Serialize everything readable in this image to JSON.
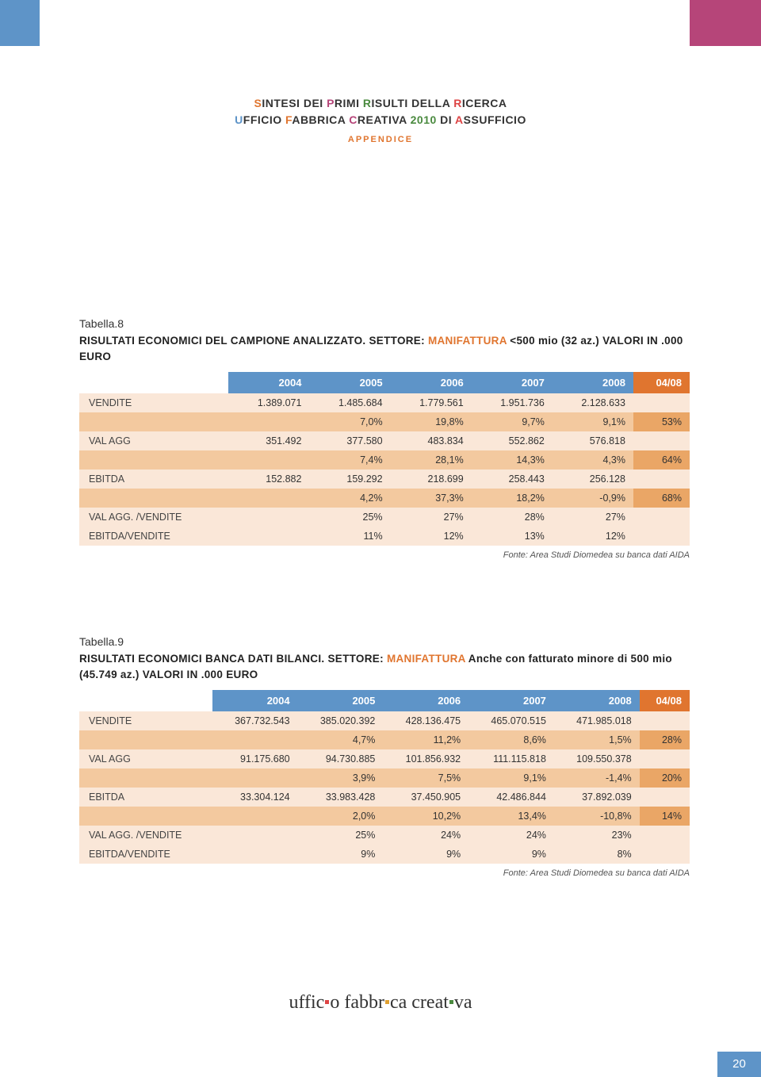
{
  "header": {
    "line1_parts": [
      {
        "t": "S",
        "c": "#e0752f"
      },
      {
        "t": "INTESI DEI ",
        "c": "#333"
      },
      {
        "t": "P",
        "c": "#b64579"
      },
      {
        "t": "RIMI ",
        "c": "#333"
      },
      {
        "t": "R",
        "c": "#4a8a3f"
      },
      {
        "t": "ISULTI DELLA ",
        "c": "#333"
      },
      {
        "t": "R",
        "c": "#d44"
      },
      {
        "t": "ICERCA",
        "c": "#333"
      }
    ],
    "line2_parts": [
      {
        "t": "U",
        "c": "#5e94c8"
      },
      {
        "t": "FFICIO ",
        "c": "#333"
      },
      {
        "t": "F",
        "c": "#e0752f"
      },
      {
        "t": "ABBRICA ",
        "c": "#333"
      },
      {
        "t": "C",
        "c": "#b64579"
      },
      {
        "t": "REATIVA ",
        "c": "#333"
      },
      {
        "t": "2010",
        "c": "#4a8a3f"
      },
      {
        "t": " DI ",
        "c": "#333"
      },
      {
        "t": "A",
        "c": "#d44"
      },
      {
        "t": "SSUFFICIO",
        "c": "#333"
      }
    ],
    "sub": "APPENDICE"
  },
  "section1": {
    "label": "Tabella.8",
    "title_pre": "RISULTATI ECONOMICI DEL CAMPIONE ANALIZZATO. SETTORE: ",
    "title_hl": "MANIFATTURA",
    "title_post": " <500 mio (32 az.) VALORI IN .000 EURO",
    "columns": [
      "",
      "2004",
      "2005",
      "2006",
      "2007",
      "2008",
      "04/08"
    ],
    "rows": [
      {
        "style": "light",
        "cells": [
          "VENDITE",
          "1.389.071",
          "1.485.684",
          "1.779.561",
          "1.951.736",
          "2.128.633",
          ""
        ]
      },
      {
        "style": "mid",
        "cells": [
          "",
          "",
          "7,0%",
          "19,8%",
          "9,7%",
          "9,1%",
          "53%"
        ]
      },
      {
        "style": "light",
        "cells": [
          "VAL AGG",
          "351.492",
          "377.580",
          "483.834",
          "552.862",
          "576.818",
          ""
        ]
      },
      {
        "style": "mid",
        "cells": [
          "",
          "",
          "7,4%",
          "28,1%",
          "14,3%",
          "4,3%",
          "64%"
        ]
      },
      {
        "style": "light",
        "cells": [
          "EBITDA",
          "152.882",
          "159.292",
          "218.699",
          "258.443",
          "256.128",
          ""
        ]
      },
      {
        "style": "mid",
        "cells": [
          "",
          "",
          "4,2%",
          "37,3%",
          "18,2%",
          "-0,9%",
          "68%"
        ]
      },
      {
        "style": "light",
        "cells": [
          "VAL AGG. /VENDITE",
          "",
          "25%",
          "27%",
          "28%",
          "27%",
          ""
        ]
      },
      {
        "style": "light",
        "cells": [
          "EBITDA/VENDITE",
          "",
          "11%",
          "12%",
          "13%",
          "12%",
          ""
        ]
      }
    ],
    "source": "Fonte: Area Studi Diomedea su banca dati AIDA"
  },
  "section2": {
    "label": "Tabella.9",
    "title_pre": "RISULTATI ECONOMICI BANCA DATI BILANCI. SETTORE: ",
    "title_hl": "MANIFATTURA",
    "title_post": " Anche con fatturato minore di 500 mio (45.749 az.) VALORI IN .000 EURO",
    "columns": [
      "",
      "2004",
      "2005",
      "2006",
      "2007",
      "2008",
      "04/08"
    ],
    "rows": [
      {
        "style": "light",
        "cells": [
          "VENDITE",
          "367.732.543",
          "385.020.392",
          "428.136.475",
          "465.070.515",
          "471.985.018",
          ""
        ]
      },
      {
        "style": "mid",
        "cells": [
          "",
          "",
          "4,7%",
          "11,2%",
          "8,6%",
          "1,5%",
          "28%"
        ]
      },
      {
        "style": "light",
        "cells": [
          "VAL AGG",
          "91.175.680",
          "94.730.885",
          "101.856.932",
          "111.115.818",
          "109.550.378",
          ""
        ]
      },
      {
        "style": "mid",
        "cells": [
          "",
          "",
          "3,9%",
          "7,5%",
          "9,1%",
          "-1,4%",
          "20%"
        ]
      },
      {
        "style": "light",
        "cells": [
          "EBITDA",
          "33.304.124",
          "33.983.428",
          "37.450.905",
          "42.486.844",
          "37.892.039",
          ""
        ]
      },
      {
        "style": "mid",
        "cells": [
          "",
          "",
          "2,0%",
          "10,2%",
          "13,4%",
          "-10,8%",
          "14%"
        ]
      },
      {
        "style": "light",
        "cells": [
          "VAL AGG. /VENDITE",
          "",
          "25%",
          "24%",
          "24%",
          "23%",
          ""
        ]
      },
      {
        "style": "light",
        "cells": [
          "EBITDA/VENDITE",
          "",
          "9%",
          "9%",
          "9%",
          "8%",
          ""
        ]
      }
    ],
    "source": "Fonte: Area Studi Diomedea su banca dati AIDA"
  },
  "footer": {
    "logo_parts": [
      {
        "t": "uffic",
        "c": "#333"
      },
      {
        "dot": "#d44"
      },
      {
        "t": "o fabbr",
        "c": "#333"
      },
      {
        "dot": "#e0a030"
      },
      {
        "t": "ca creat",
        "c": "#333"
      },
      {
        "dot": "#4a8a3f"
      },
      {
        "t": "va",
        "c": "#333"
      }
    ],
    "page": "20"
  },
  "colors": {
    "blue": "#5e94c8",
    "magenta": "#b64579",
    "orange": "#e0752f",
    "row_light": "#fae7d8",
    "row_mid": "#f3c99f",
    "row_mid_last": "#eaa666"
  }
}
